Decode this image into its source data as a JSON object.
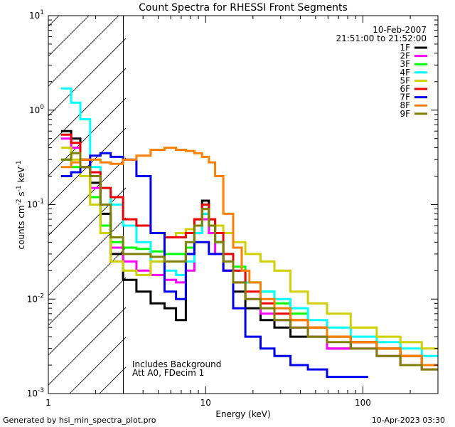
{
  "chart_data": {
    "type": "line",
    "title": "Count Spectra for RHESSI Front Segments",
    "date_label": "10-Feb-2007",
    "time_range": "21:51:00 to 21:52:00",
    "xlabel": "Energy (keV)",
    "ylabel_parts": {
      "base": "counts cm",
      "exp1": "-2",
      "mid": " s",
      "exp2": "-1",
      "end": " keV",
      "exp3": "-1"
    },
    "x_scale": "log",
    "y_scale": "log",
    "xlim": [
      1,
      300
    ],
    "ylim": [
      0.001,
      10
    ],
    "x_ticks": [
      {
        "value": 1,
        "label": "1"
      },
      {
        "value": 10,
        "label": "10"
      },
      {
        "value": 100,
        "label": "100"
      }
    ],
    "y_ticks": [
      {
        "value": 10,
        "base": "10",
        "exp": "1"
      },
      {
        "value": 1,
        "base": "10",
        "exp": "0"
      },
      {
        "value": 0.1,
        "base": "10",
        "exp": "-1"
      },
      {
        "value": 0.01,
        "base": "10",
        "exp": "-2"
      },
      {
        "value": 0.001,
        "base": "10",
        "exp": "-3"
      }
    ],
    "excluded_region": {
      "x_min": 1,
      "x_max": 3
    },
    "annotations": [
      "Includes Background",
      "Att A0, FDecim 1"
    ],
    "legend_position": "top-right",
    "series": [
      {
        "name": "1F",
        "color": "#000000",
        "points": [
          [
            1.3,
            0.6
          ],
          [
            1.5,
            0.5
          ],
          [
            1.7,
            0.3
          ],
          [
            2.0,
            0.17
          ],
          [
            2.3,
            0.08
          ],
          [
            2.7,
            0.03
          ],
          [
            3.3,
            0.016
          ],
          [
            4,
            0.012
          ],
          [
            5,
            0.009
          ],
          [
            6,
            0.008
          ],
          [
            7,
            0.006
          ],
          [
            8,
            0.03
          ],
          [
            9,
            0.07
          ],
          [
            10,
            0.11
          ],
          [
            11,
            0.07
          ],
          [
            12,
            0.04
          ],
          [
            14,
            0.02
          ],
          [
            16,
            0.012
          ],
          [
            20,
            0.008
          ],
          [
            25,
            0.006
          ],
          [
            30,
            0.005
          ],
          [
            40,
            0.004
          ],
          [
            50,
            0.004
          ],
          [
            70,
            0.003
          ],
          [
            100,
            0.0035
          ],
          [
            150,
            0.003
          ],
          [
            200,
            0.0025
          ],
          [
            280,
            0.002
          ]
        ]
      },
      {
        "name": "2F",
        "color": "#ff00ff",
        "points": [
          [
            1.3,
            0.5
          ],
          [
            1.5,
            0.4
          ],
          [
            1.7,
            0.25
          ],
          [
            2.0,
            0.15
          ],
          [
            2.3,
            0.06
          ],
          [
            2.7,
            0.035
          ],
          [
            3.3,
            0.025
          ],
          [
            4,
            0.02
          ],
          [
            5,
            0.018
          ],
          [
            6,
            0.016
          ],
          [
            7,
            0.015
          ],
          [
            8,
            0.02
          ],
          [
            9,
            0.05
          ],
          [
            10,
            0.07
          ],
          [
            11,
            0.05
          ],
          [
            12,
            0.03
          ],
          [
            14,
            0.02
          ],
          [
            16,
            0.015
          ],
          [
            20,
            0.01
          ],
          [
            25,
            0.007
          ],
          [
            30,
            0.006
          ],
          [
            40,
            0.005
          ],
          [
            50,
            0.004
          ],
          [
            70,
            0.003
          ],
          [
            100,
            0.003
          ],
          [
            150,
            0.0025
          ],
          [
            200,
            0.002
          ],
          [
            280,
            0.0018
          ]
        ]
      },
      {
        "name": "3F",
        "color": "#00ff00",
        "points": [
          [
            1.3,
            0.3
          ],
          [
            1.5,
            0.25
          ],
          [
            1.7,
            0.2
          ],
          [
            2.0,
            0.12
          ],
          [
            2.3,
            0.06
          ],
          [
            2.7,
            0.04
          ],
          [
            3.3,
            0.035
          ],
          [
            4,
            0.034
          ],
          [
            5,
            0.032
          ],
          [
            6,
            0.03
          ],
          [
            7,
            0.03
          ],
          [
            8,
            0.035
          ],
          [
            9,
            0.05
          ],
          [
            10,
            0.08
          ],
          [
            11,
            0.06
          ],
          [
            12,
            0.04
          ],
          [
            14,
            0.03
          ],
          [
            16,
            0.022
          ],
          [
            20,
            0.015
          ],
          [
            25,
            0.012
          ],
          [
            30,
            0.009
          ],
          [
            40,
            0.007
          ],
          [
            50,
            0.005
          ],
          [
            70,
            0.004
          ],
          [
            100,
            0.0035
          ],
          [
            150,
            0.003
          ],
          [
            200,
            0.0025
          ],
          [
            280,
            0.002
          ]
        ]
      },
      {
        "name": "4F",
        "color": "#00ffff",
        "points": [
          [
            1.3,
            1.7
          ],
          [
            1.5,
            1.2
          ],
          [
            1.7,
            0.8
          ],
          [
            2.0,
            0.25
          ],
          [
            2.3,
            0.15
          ],
          [
            2.7,
            0.1
          ],
          [
            3.3,
            0.06
          ],
          [
            4,
            0.04
          ],
          [
            5,
            0.025
          ],
          [
            6,
            0.02
          ],
          [
            7,
            0.018
          ],
          [
            8,
            0.025
          ],
          [
            9,
            0.05
          ],
          [
            10,
            0.08
          ],
          [
            11,
            0.06
          ],
          [
            12,
            0.04
          ],
          [
            14,
            0.03
          ],
          [
            16,
            0.02
          ],
          [
            20,
            0.015
          ],
          [
            25,
            0.012
          ],
          [
            30,
            0.01
          ],
          [
            40,
            0.008
          ],
          [
            50,
            0.006
          ],
          [
            70,
            0.005
          ],
          [
            100,
            0.004
          ],
          [
            150,
            0.0035
          ],
          [
            200,
            0.003
          ],
          [
            280,
            0.0025
          ]
        ]
      },
      {
        "name": "5F",
        "color": "#d0d000",
        "points": [
          [
            1.3,
            0.4
          ],
          [
            1.5,
            0.3
          ],
          [
            1.7,
            0.2
          ],
          [
            2.0,
            0.1
          ],
          [
            2.3,
            0.05
          ],
          [
            2.7,
            0.025
          ],
          [
            3.3,
            0.02
          ],
          [
            4,
            0.018
          ],
          [
            5,
            0.025
          ],
          [
            6,
            0.045
          ],
          [
            7,
            0.05
          ],
          [
            8,
            0.055
          ],
          [
            9,
            0.07
          ],
          [
            10,
            0.09
          ],
          [
            11,
            0.07
          ],
          [
            12,
            0.06
          ],
          [
            14,
            0.05
          ],
          [
            16,
            0.04
          ],
          [
            20,
            0.03
          ],
          [
            25,
            0.025
          ],
          [
            30,
            0.02
          ],
          [
            40,
            0.012
          ],
          [
            50,
            0.009
          ],
          [
            70,
            0.007
          ],
          [
            100,
            0.005
          ],
          [
            150,
            0.004
          ],
          [
            200,
            0.0035
          ],
          [
            280,
            0.003
          ]
        ]
      },
      {
        "name": "6F",
        "color": "#ee0000",
        "points": [
          [
            1.3,
            0.55
          ],
          [
            1.5,
            0.45
          ],
          [
            1.7,
            0.3
          ],
          [
            2.0,
            0.22
          ],
          [
            2.3,
            0.15
          ],
          [
            2.7,
            0.12
          ],
          [
            3.3,
            0.07
          ],
          [
            4,
            0.06
          ],
          [
            5,
            0.05
          ],
          [
            6,
            0.045
          ],
          [
            7,
            0.045
          ],
          [
            8,
            0.05
          ],
          [
            9,
            0.07
          ],
          [
            10,
            0.1
          ],
          [
            11,
            0.07
          ],
          [
            12,
            0.05
          ],
          [
            14,
            0.03
          ],
          [
            16,
            0.02
          ],
          [
            20,
            0.012
          ],
          [
            25,
            0.009
          ],
          [
            30,
            0.007
          ],
          [
            40,
            0.006
          ],
          [
            50,
            0.005
          ],
          [
            70,
            0.004
          ],
          [
            100,
            0.0035
          ],
          [
            150,
            0.003
          ],
          [
            200,
            0.0025
          ],
          [
            280,
            0.002
          ]
        ]
      },
      {
        "name": "7F",
        "color": "#0000ee",
        "points": [
          [
            1.3,
            0.2
          ],
          [
            1.5,
            0.22
          ],
          [
            1.7,
            0.25
          ],
          [
            2.0,
            0.33
          ],
          [
            2.3,
            0.35
          ],
          [
            2.7,
            0.32
          ],
          [
            3.3,
            0.3
          ],
          [
            4,
            0.2
          ],
          [
            5,
            0.05
          ],
          [
            6,
            0.012
          ],
          [
            7,
            0.01
          ],
          [
            8,
            0.03
          ],
          [
            9,
            0.04
          ],
          [
            10,
            0.04
          ],
          [
            11,
            0.03
          ],
          [
            12,
            0.03
          ],
          [
            14,
            0.02
          ],
          [
            16,
            0.008
          ],
          [
            20,
            0.004
          ],
          [
            25,
            0.003
          ],
          [
            30,
            0.0025
          ],
          [
            40,
            0.002
          ],
          [
            50,
            0.0018
          ],
          [
            70,
            0.0015
          ],
          [
            100,
            0.0015
          ]
        ]
      },
      {
        "name": "8F",
        "color": "#ff7f00",
        "points": [
          [
            1.3,
            0.25
          ],
          [
            1.5,
            0.28
          ],
          [
            1.7,
            0.3
          ],
          [
            2.0,
            0.3
          ],
          [
            2.3,
            0.28
          ],
          [
            2.7,
            0.27
          ],
          [
            3.3,
            0.3
          ],
          [
            4,
            0.33
          ],
          [
            5,
            0.38
          ],
          [
            6,
            0.4
          ],
          [
            7,
            0.38
          ],
          [
            8,
            0.37
          ],
          [
            9,
            0.35
          ],
          [
            10,
            0.32
          ],
          [
            11,
            0.28
          ],
          [
            12,
            0.2
          ],
          [
            14,
            0.08
          ],
          [
            16,
            0.035
          ],
          [
            18,
            0.02
          ],
          [
            20,
            0.015
          ],
          [
            25,
            0.01
          ],
          [
            30,
            0.008
          ],
          [
            40,
            0.006
          ],
          [
            50,
            0.005
          ],
          [
            70,
            0.004
          ],
          [
            100,
            0.0035
          ],
          [
            150,
            0.003
          ],
          [
            200,
            0.0025
          ],
          [
            280,
            0.002
          ]
        ]
      },
      {
        "name": "9F",
        "color": "#808000",
        "points": [
          [
            1.3,
            0.3
          ],
          [
            1.5,
            0.35
          ],
          [
            1.7,
            0.25
          ],
          [
            2.0,
            0.2
          ],
          [
            2.3,
            0.1
          ],
          [
            2.7,
            0.045
          ],
          [
            3.3,
            0.03
          ],
          [
            4,
            0.03
          ],
          [
            5,
            0.028
          ],
          [
            6,
            0.025
          ],
          [
            7,
            0.025
          ],
          [
            8,
            0.04
          ],
          [
            9,
            0.06
          ],
          [
            10,
            0.09
          ],
          [
            11,
            0.06
          ],
          [
            12,
            0.04
          ],
          [
            14,
            0.025
          ],
          [
            16,
            0.015
          ],
          [
            20,
            0.01
          ],
          [
            25,
            0.008
          ],
          [
            30,
            0.006
          ],
          [
            40,
            0.005
          ],
          [
            50,
            0.004
          ],
          [
            70,
            0.0035
          ],
          [
            100,
            0.003
          ],
          [
            150,
            0.0025
          ],
          [
            200,
            0.002
          ],
          [
            280,
            0.0018
          ]
        ]
      }
    ]
  },
  "footer": {
    "generated_by": "Generated by hsi_min_spectra_plot.pro",
    "timestamp": "10-Apr-2023 03:30"
  }
}
